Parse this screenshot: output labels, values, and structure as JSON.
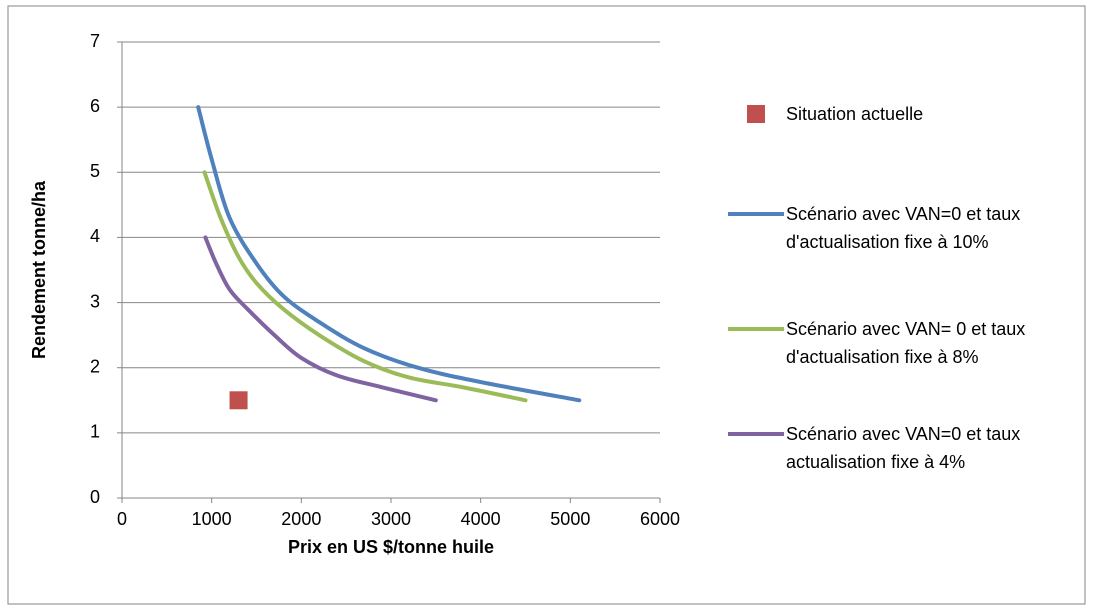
{
  "chart_data": {
    "type": "scatter",
    "xlabel": "Prix en US $/tonne huile",
    "ylabel": "Rendement tonne/ha",
    "xlim": [
      0,
      6000
    ],
    "xticks": [
      0,
      1000,
      2000,
      3000,
      4000,
      5000,
      6000
    ],
    "ylim": [
      0,
      7
    ],
    "yticks": [
      0,
      1,
      2,
      3,
      4,
      5,
      6,
      7
    ],
    "grid": true,
    "legend": "right",
    "series": [
      {
        "name": "Situation actuelle",
        "color": "#c0504d",
        "mode": "markers",
        "x": [
          1300
        ],
        "values": [
          1.5
        ]
      },
      {
        "name": "Scénario avec VAN=0 et taux d'actualisation fixe à 10%",
        "color": "#4f81bd",
        "mode": "lines",
        "x": [
          850,
          1000,
          1200,
          1500,
          1800,
          2200,
          2700,
          3300,
          4000,
          5100
        ],
        "values": [
          6,
          5.2,
          4.3,
          3.6,
          3.1,
          2.7,
          2.3,
          2,
          1.78,
          1.5
        ]
      },
      {
        "name": "Scénario avec VAN= 0 et taux d'actualisation fixe à 8%",
        "color": "#9bbb59",
        "mode": "lines",
        "x": [
          920,
          1100,
          1300,
          1500,
          1800,
          2200,
          2700,
          3200,
          3800,
          4500
        ],
        "values": [
          5,
          4.3,
          3.7,
          3.3,
          2.9,
          2.5,
          2.1,
          1.85,
          1.7,
          1.5
        ]
      },
      {
        "name": "Scénario avec VAN=0 et taux actualisation fixe à 4%",
        "color": "#8064a2",
        "mode": "lines",
        "x": [
          930,
          1050,
          1200,
          1400,
          1700,
          2000,
          2400,
          2900,
          3500
        ],
        "values": [
          4,
          3.6,
          3.2,
          2.9,
          2.5,
          2.15,
          1.88,
          1.7,
          1.5
        ]
      }
    ]
  }
}
